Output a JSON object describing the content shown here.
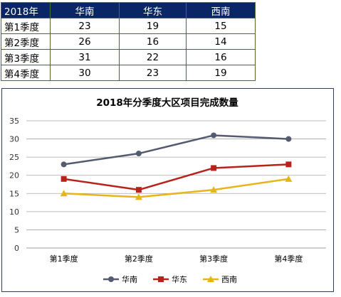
{
  "table": {
    "header": [
      "2018年",
      "华南",
      "华东",
      "西南"
    ],
    "rows": [
      [
        "第1季度",
        "23",
        "19",
        "15"
      ],
      [
        "第2季度",
        "26",
        "16",
        "14"
      ],
      [
        "第3季度",
        "31",
        "22",
        "16"
      ],
      [
        "第4季度",
        "30",
        "23",
        "19"
      ]
    ]
  },
  "chart_data": {
    "type": "line",
    "title": "2018年分季度大区项目完成数量",
    "categories": [
      "第1季度",
      "第2季度",
      "第3季度",
      "第4季度"
    ],
    "series": [
      {
        "name": "华南",
        "values": [
          23,
          26,
          31,
          30
        ],
        "color": "#545a6f",
        "marker": "circle"
      },
      {
        "name": "华东",
        "values": [
          19,
          16,
          22,
          23
        ],
        "color": "#b8221a",
        "marker": "square"
      },
      {
        "name": "西南",
        "values": [
          15,
          14,
          16,
          19
        ],
        "color": "#e6b619",
        "marker": "triangle"
      }
    ],
    "ylim": [
      0,
      35
    ],
    "yticks": [
      0,
      5,
      10,
      15,
      20,
      25,
      30,
      35
    ],
    "grid": true,
    "legend": "bottom"
  }
}
